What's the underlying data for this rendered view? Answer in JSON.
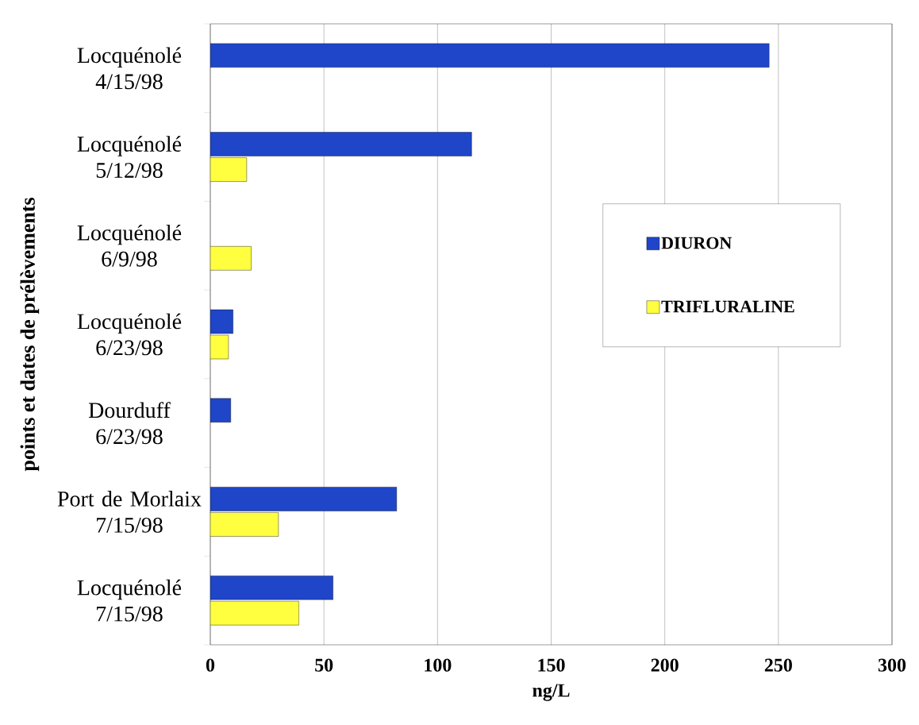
{
  "chart_data": {
    "type": "bar",
    "orientation": "horizontal",
    "xlabel": "ng/L",
    "ylabel": "points et dates de prélèvements",
    "categories": [
      "Locquénolé 4/15/98",
      "Locquénolé 5/12/98",
      "Locquénolé 6/9/98",
      "Locquénolé 6/23/98",
      "Dourduff 6/23/98",
      "Port de Morlaix 7/15/98",
      "Locquénolé 7/15/98"
    ],
    "series": [
      {
        "name": "DIURON",
        "color": "#1f45c8",
        "values": [
          246,
          115,
          null,
          10,
          9,
          82,
          54
        ]
      },
      {
        "name": "TRIFLURALINE",
        "color": "#ffff40",
        "values": [
          null,
          16,
          18,
          8,
          null,
          30,
          39
        ]
      }
    ],
    "xlim": [
      0,
      300
    ],
    "xticks": [
      0,
      50,
      100,
      150,
      200,
      250,
      300
    ],
    "grid": "x",
    "legend": "right"
  }
}
